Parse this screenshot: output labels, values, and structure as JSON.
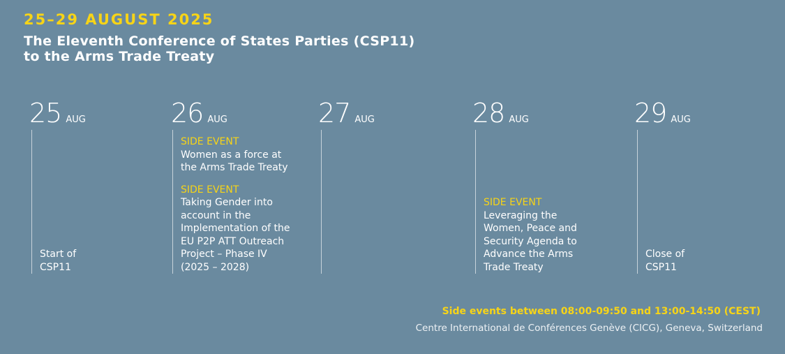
{
  "header": {
    "date": "25–29 AUGUST 2025",
    "title": [
      "The Eleventh Conference of States Parties (CSP11)",
      "to the Arms Trade Treaty"
    ]
  },
  "days": [
    {
      "day": "25",
      "month": "AUG",
      "note": [
        "Start of",
        "CSP11"
      ]
    },
    {
      "day": "26",
      "month": "AUG",
      "events": [
        {
          "label": "SIDE EVENT",
          "text": [
            "Women as a force at",
            "the Arms Trade Treaty"
          ]
        },
        {
          "label": "SIDE EVENT",
          "text": [
            "Taking Gender into",
            "account in the",
            "Implementation of the",
            "EU P2P ATT Outreach",
            "Project – Phase IV",
            "(2025 – 2028)"
          ]
        }
      ]
    },
    {
      "day": "27",
      "month": "AUG"
    },
    {
      "day": "28",
      "month": "AUG",
      "events": [
        {
          "label": "SIDE EVENT",
          "text": [
            "Leveraging the",
            "Women, Peace and",
            "Security Agenda to",
            "Advance the Arms",
            "Trade Treaty"
          ]
        }
      ]
    },
    {
      "day": "29",
      "month": "AUG",
      "note": [
        "Close of",
        "CSP11"
      ]
    }
  ],
  "footer": {
    "hours": "Side events between 08:00-09:50 and 13:00-14:50 (CEST)",
    "venue": "Centre International de Conférences Genève (CICG), Geneva, Switzerland"
  }
}
